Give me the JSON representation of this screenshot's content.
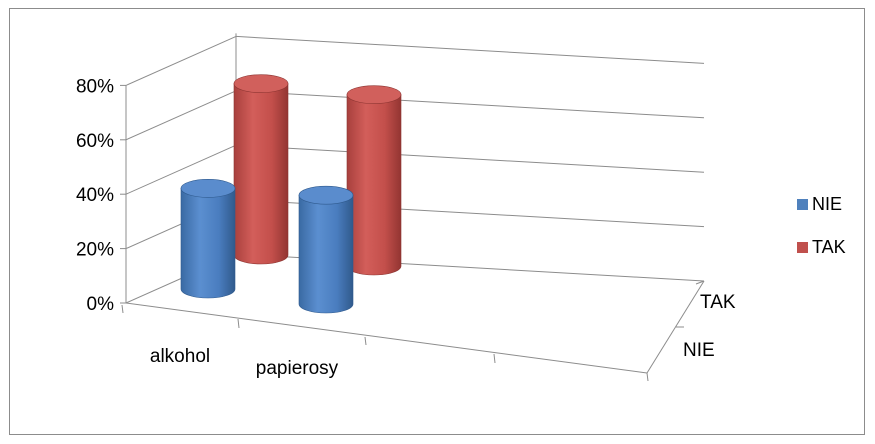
{
  "chart_data": {
    "type": "bar",
    "style": "3d-cylinder",
    "categories": [
      "alkohol",
      "papierosy"
    ],
    "depth_categories": [
      "NIE",
      "TAK"
    ],
    "series": [
      {
        "name": "NIE",
        "color": "#4f81bd",
        "values": [
          37,
          40
        ]
      },
      {
        "name": "TAK",
        "color": "#c0504d",
        "values": [
          63,
          63
        ]
      }
    ],
    "y_ticks": [
      "0%",
      "20%",
      "40%",
      "60%",
      "80%"
    ],
    "ylim": [
      0,
      80
    ],
    "grid": true,
    "legend_position": "right"
  }
}
